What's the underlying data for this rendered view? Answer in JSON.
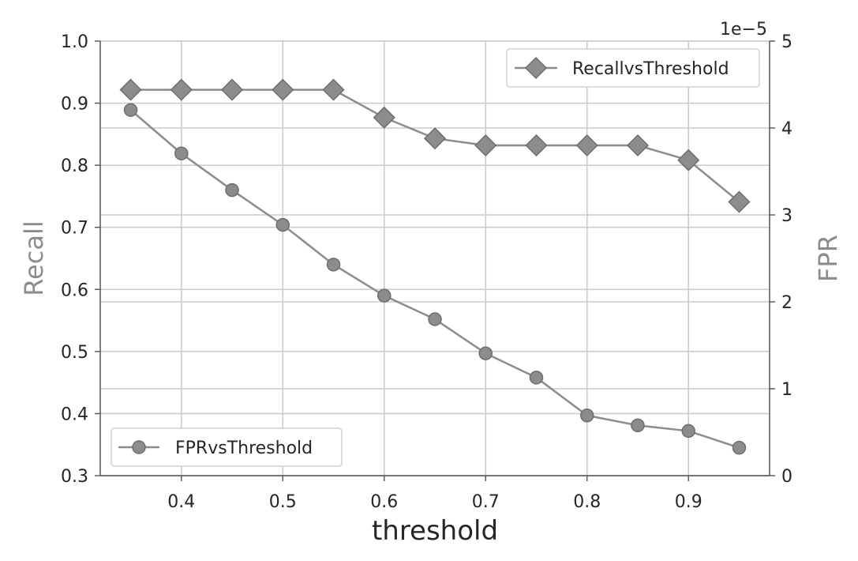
{
  "chart_data": {
    "type": "line",
    "xlabel": "threshold",
    "ylabel_left": "Recall",
    "ylabel_right": "FPR",
    "right_axis_offset_text": "1e−5",
    "xlim": [
      0.32,
      0.98
    ],
    "ylim_left": [
      0.3,
      1.0
    ],
    "ylim_right": [
      0,
      5
    ],
    "right_axis_multiplier": 1e-05,
    "x_ticks": [
      "0.4",
      "0.5",
      "0.6",
      "0.7",
      "0.8",
      "0.9"
    ],
    "left_ticks": [
      "0.3",
      "0.4",
      "0.5",
      "0.6",
      "0.7",
      "0.8",
      "0.9",
      "1.0"
    ],
    "right_ticks": [
      "0",
      "1",
      "2",
      "3",
      "4",
      "5"
    ],
    "grid": true,
    "x": [
      0.35,
      0.4,
      0.45,
      0.5,
      0.55,
      0.6,
      0.65,
      0.7,
      0.75,
      0.8,
      0.85,
      0.9,
      0.95
    ],
    "series": [
      {
        "name": "FPRvsThreshold",
        "axis": "left",
        "marker": "circle",
        "color": "#8c8c8c",
        "values": [
          0.889,
          0.819,
          0.76,
          0.704,
          0.64,
          0.59,
          0.552,
          0.497,
          0.458,
          0.397,
          0.381,
          0.372,
          0.345
        ]
      },
      {
        "name": "RecallvsThreshold",
        "axis": "right",
        "marker": "diamond",
        "color": "#8c8c8c",
        "values": [
          4.44,
          4.44,
          4.44,
          4.44,
          4.44,
          4.12,
          3.88,
          3.8,
          3.8,
          3.8,
          3.8,
          3.63,
          3.15
        ]
      }
    ],
    "legends": [
      {
        "series": "RecallvsThreshold",
        "position": "upper-right"
      },
      {
        "series": "FPRvsThreshold",
        "position": "lower-left"
      }
    ]
  }
}
